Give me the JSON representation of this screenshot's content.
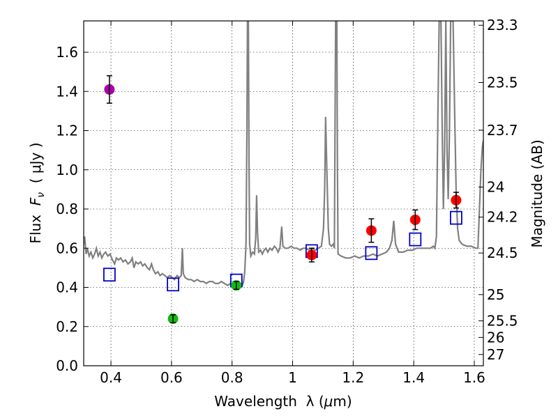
{
  "chart_data": {
    "type": "scatter",
    "title": "",
    "xlabel": "Wavelength  λ (μm)",
    "ylabel": "Flux  F_ν  ( μJy )",
    "ylabel_parts": {
      "prefix": "Flux  ",
      "symbol": "F",
      "subscript": "ν",
      "suffix": "  ( μJy )"
    },
    "xlabel_parts": {
      "prefix": "Wavelength  λ (",
      "mu": "μ",
      "suffix": "m)"
    },
    "y2label": "Magnitude (AB)",
    "xlim": [
      0.31,
      1.63
    ],
    "ylim": [
      0.0,
      1.76
    ],
    "grid": true,
    "x_ticks": [
      0.4,
      0.6,
      0.8,
      1.0,
      1.2,
      1.4,
      1.6
    ],
    "x_tick_labels": [
      "0.4",
      "0.6",
      "0.8",
      "1",
      "1.2",
      "1.4",
      "1.6"
    ],
    "y_ticks": [
      0.0,
      0.2,
      0.4,
      0.6,
      0.8,
      1.0,
      1.2,
      1.4,
      1.6
    ],
    "y_tick_labels": [
      "0.0",
      "0.2",
      "0.4",
      "0.6",
      "0.8",
      "1.0",
      "1.2",
      "1.4",
      "1.6"
    ],
    "mag_ticks": [
      23.3,
      23.5,
      23.7,
      24,
      24.2,
      24.5,
      25,
      25.5,
      26,
      27
    ],
    "mag_tick_labels": [
      "23.3",
      "23.5",
      "23.7",
      "24",
      "24.2",
      "24.5",
      "25",
      "25.5",
      "26",
      "27"
    ],
    "observed_points": [
      {
        "x": 0.395,
        "y": 1.41,
        "err": 0.07,
        "color": "#aa00aa"
      },
      {
        "x": 0.605,
        "y": 0.24,
        "err": 0.02,
        "color": "#11bb11"
      },
      {
        "x": 0.814,
        "y": 0.41,
        "err": 0.02,
        "color": "#11bb11"
      },
      {
        "x": 1.063,
        "y": 0.565,
        "err": 0.035,
        "color": "#ff0000"
      },
      {
        "x": 1.26,
        "y": 0.69,
        "err": 0.06,
        "color": "#ff0000"
      },
      {
        "x": 1.405,
        "y": 0.745,
        "err": 0.05,
        "color": "#ff0000"
      },
      {
        "x": 1.54,
        "y": 0.845,
        "err": 0.04,
        "color": "#ff0000"
      }
    ],
    "model_points": [
      {
        "x": 0.395,
        "y": 0.465
      },
      {
        "x": 0.605,
        "y": 0.415
      },
      {
        "x": 0.814,
        "y": 0.435
      },
      {
        "x": 1.063,
        "y": 0.585
      },
      {
        "x": 1.26,
        "y": 0.575
      },
      {
        "x": 1.405,
        "y": 0.645
      },
      {
        "x": 1.54,
        "y": 0.755
      }
    ],
    "model_point_color": "#0000cc",
    "spectrum_color": "#808080",
    "spectrum": [
      [
        0.31,
        0.62
      ],
      [
        0.313,
        0.66
      ],
      [
        0.318,
        0.57
      ],
      [
        0.322,
        0.6
      ],
      [
        0.328,
        0.56
      ],
      [
        0.334,
        0.58
      ],
      [
        0.34,
        0.55
      ],
      [
        0.346,
        0.57
      ],
      [
        0.352,
        0.6
      ],
      [
        0.358,
        0.56
      ],
      [
        0.364,
        0.58
      ],
      [
        0.37,
        0.55
      ],
      [
        0.376,
        0.57
      ],
      [
        0.382,
        0.58
      ],
      [
        0.39,
        0.56
      ],
      [
        0.397,
        0.57
      ],
      [
        0.405,
        0.54
      ],
      [
        0.412,
        0.52
      ],
      [
        0.418,
        0.55
      ],
      [
        0.425,
        0.54
      ],
      [
        0.432,
        0.55
      ],
      [
        0.44,
        0.53
      ],
      [
        0.448,
        0.54
      ],
      [
        0.456,
        0.52
      ],
      [
        0.464,
        0.53
      ],
      [
        0.47,
        0.55
      ],
      [
        0.476,
        0.5
      ],
      [
        0.482,
        0.53
      ],
      [
        0.49,
        0.52
      ],
      [
        0.498,
        0.53
      ],
      [
        0.505,
        0.51
      ],
      [
        0.512,
        0.52
      ],
      [
        0.52,
        0.5
      ],
      [
        0.527,
        0.49
      ],
      [
        0.534,
        0.52
      ],
      [
        0.54,
        0.49
      ],
      [
        0.547,
        0.47
      ],
      [
        0.555,
        0.48
      ],
      [
        0.562,
        0.46
      ],
      [
        0.57,
        0.47
      ],
      [
        0.578,
        0.46
      ],
      [
        0.586,
        0.45
      ],
      [
        0.594,
        0.46
      ],
      [
        0.602,
        0.45
      ],
      [
        0.61,
        0.44
      ],
      [
        0.618,
        0.46
      ],
      [
        0.626,
        0.45
      ],
      [
        0.632,
        0.46
      ],
      [
        0.636,
        0.6
      ],
      [
        0.639,
        0.47
      ],
      [
        0.645,
        0.45
      ],
      [
        0.655,
        0.44
      ],
      [
        0.665,
        0.44
      ],
      [
        0.675,
        0.43
      ],
      [
        0.685,
        0.44
      ],
      [
        0.695,
        0.43
      ],
      [
        0.705,
        0.43
      ],
      [
        0.715,
        0.42
      ],
      [
        0.725,
        0.43
      ],
      [
        0.735,
        0.43
      ],
      [
        0.745,
        0.42
      ],
      [
        0.755,
        0.42
      ],
      [
        0.765,
        0.43
      ],
      [
        0.775,
        0.42
      ],
      [
        0.785,
        0.41
      ],
      [
        0.795,
        0.42
      ],
      [
        0.805,
        0.41
      ],
      [
        0.815,
        0.42
      ],
      [
        0.822,
        0.41
      ],
      [
        0.828,
        0.4
      ],
      [
        0.834,
        0.41
      ],
      [
        0.838,
        0.43
      ],
      [
        0.842,
        0.48
      ],
      [
        0.846,
        0.62
      ],
      [
        0.849,
        1.2
      ],
      [
        0.851,
        1.76
      ],
      [
        0.854,
        1.76
      ],
      [
        0.856,
        1.05
      ],
      [
        0.858,
        0.62
      ],
      [
        0.862,
        0.56
      ],
      [
        0.868,
        0.58
      ],
      [
        0.874,
        0.57
      ],
      [
        0.878,
        0.65
      ],
      [
        0.881,
        0.87
      ],
      [
        0.884,
        0.68
      ],
      [
        0.888,
        0.58
      ],
      [
        0.894,
        0.59
      ],
      [
        0.9,
        0.57
      ],
      [
        0.906,
        0.59
      ],
      [
        0.912,
        0.6
      ],
      [
        0.918,
        0.58
      ],
      [
        0.925,
        0.6
      ],
      [
        0.932,
        0.59
      ],
      [
        0.94,
        0.61
      ],
      [
        0.946,
        0.6
      ],
      [
        0.952,
        0.58
      ],
      [
        0.958,
        0.6
      ],
      [
        0.964,
        0.71
      ],
      [
        0.968,
        0.61
      ],
      [
        0.975,
        0.6
      ],
      [
        0.985,
        0.6
      ],
      [
        0.995,
        0.61
      ],
      [
        1.005,
        0.6
      ],
      [
        1.015,
        0.6
      ],
      [
        1.025,
        0.59
      ],
      [
        1.035,
        0.6
      ],
      [
        1.045,
        0.6
      ],
      [
        1.055,
        0.59
      ],
      [
        1.065,
        0.6
      ],
      [
        1.075,
        0.59
      ],
      [
        1.085,
        0.6
      ],
      [
        1.095,
        0.61
      ],
      [
        1.102,
        0.7
      ],
      [
        1.106,
        0.9
      ],
      [
        1.109,
        1.27
      ],
      [
        1.113,
        1.0
      ],
      [
        1.118,
        0.7
      ],
      [
        1.122,
        0.62
      ],
      [
        1.128,
        0.61
      ],
      [
        1.134,
        0.62
      ],
      [
        1.138,
        0.6
      ],
      [
        1.14,
        1.2
      ],
      [
        1.142,
        1.76
      ],
      [
        1.146,
        1.76
      ],
      [
        1.148,
        1.0
      ],
      [
        1.15,
        0.57
      ],
      [
        1.16,
        0.56
      ],
      [
        1.175,
        0.55
      ],
      [
        1.19,
        0.55
      ],
      [
        1.205,
        0.56
      ],
      [
        1.22,
        0.55
      ],
      [
        1.235,
        0.56
      ],
      [
        1.25,
        0.56
      ],
      [
        1.265,
        0.57
      ],
      [
        1.28,
        0.56
      ],
      [
        1.295,
        0.57
      ],
      [
        1.31,
        0.58
      ],
      [
        1.32,
        0.6
      ],
      [
        1.328,
        0.64
      ],
      [
        1.334,
        0.74
      ],
      [
        1.34,
        0.62
      ],
      [
        1.35,
        0.58
      ],
      [
        1.365,
        0.58
      ],
      [
        1.38,
        0.59
      ],
      [
        1.395,
        0.59
      ],
      [
        1.41,
        0.6
      ],
      [
        1.425,
        0.6
      ],
      [
        1.44,
        0.6
      ],
      [
        1.455,
        0.6
      ],
      [
        1.465,
        0.61
      ],
      [
        1.47,
        0.6
      ],
      [
        1.475,
        0.66
      ],
      [
        1.48,
        1.3
      ],
      [
        1.484,
        1.76
      ],
      [
        1.49,
        1.76
      ],
      [
        1.494,
        1.2
      ],
      [
        1.498,
        0.8
      ],
      [
        1.502,
        1.1
      ],
      [
        1.506,
        1.76
      ],
      [
        1.51,
        1.1
      ],
      [
        1.514,
        0.85
      ],
      [
        1.518,
        1.2
      ],
      [
        1.522,
        1.76
      ],
      [
        1.53,
        1.76
      ],
      [
        1.535,
        1.3
      ],
      [
        1.54,
        0.9
      ],
      [
        1.545,
        0.7
      ],
      [
        1.55,
        0.64
      ],
      [
        1.56,
        0.62
      ],
      [
        1.575,
        0.61
      ],
      [
        1.59,
        0.61
      ],
      [
        1.605,
        0.6
      ],
      [
        1.612,
        0.6
      ],
      [
        1.617,
        0.8
      ],
      [
        1.622,
        1.0
      ],
      [
        1.627,
        1.12
      ],
      [
        1.63,
        1.15
      ]
    ]
  }
}
